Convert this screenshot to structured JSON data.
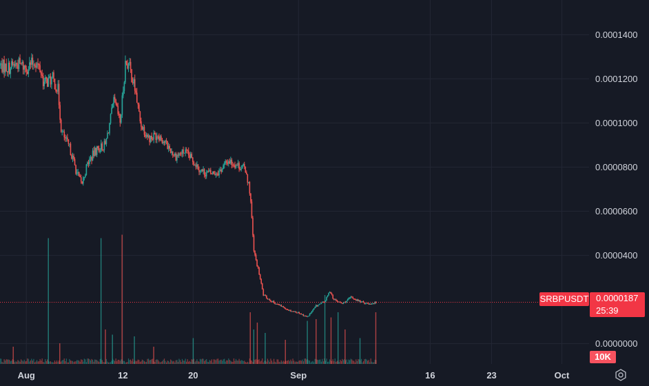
{
  "chart_data": {
    "type": "candlestick",
    "symbol": "SRBPUSDT",
    "last_price": "0.0000187",
    "countdown": "25:39",
    "volume_label": "10K",
    "y_ticks": [
      "0.0001400",
      "0.0001200",
      "0.0001000",
      "0.0000800",
      "0.0000600",
      "0.0000400",
      "0.0000000"
    ],
    "y_tick_values": [
      0.00014,
      0.00012,
      0.0001,
      8e-05,
      6e-05,
      4e-05,
      0
    ],
    "ylim": [
      -5e-07,
      0.0001495
    ],
    "x_ticks": [
      "Aug",
      "12",
      "20",
      "Sep",
      "16",
      "23",
      "Oct"
    ],
    "x_tick_days": [
      0,
      11,
      19,
      31,
      46,
      53,
      61
    ],
    "x_start": "Aug 1",
    "x_range_days": [
      -3.0,
      64.1
    ],
    "close_path": [
      {
        "d": -3.0,
        "v": 0.000126
      },
      {
        "d": -2.0,
        "v": 0.000125
      },
      {
        "d": -1.0,
        "v": 0.000127
      },
      {
        "d": 0.0,
        "v": 0.000125
      },
      {
        "d": 1.0,
        "v": 0.000128
      },
      {
        "d": 1.6,
        "v": 0.000124
      },
      {
        "d": 2.0,
        "v": 0.000118
      },
      {
        "d": 3.0,
        "v": 0.00012
      },
      {
        "d": 3.6,
        "v": 0.000115
      },
      {
        "d": 4.0,
        "v": 9.6e-05
      },
      {
        "d": 4.5,
        "v": 9.2e-05
      },
      {
        "d": 5.0,
        "v": 8.8e-05
      },
      {
        "d": 5.7,
        "v": 7.8e-05
      },
      {
        "d": 6.3,
        "v": 7.2e-05
      },
      {
        "d": 7.0,
        "v": 8.2e-05
      },
      {
        "d": 8.0,
        "v": 8.8e-05
      },
      {
        "d": 9.0,
        "v": 9e-05
      },
      {
        "d": 10.0,
        "v": 0.00011
      },
      {
        "d": 10.7,
        "v": 0.0001
      },
      {
        "d": 11.3,
        "v": 0.000128
      },
      {
        "d": 11.7,
        "v": 0.000126
      },
      {
        "d": 12.4,
        "v": 0.000115
      },
      {
        "d": 13.0,
        "v": 0.0001
      },
      {
        "d": 14.0,
        "v": 9.3e-05
      },
      {
        "d": 15.0,
        "v": 9.5e-05
      },
      {
        "d": 16.0,
        "v": 9e-05
      },
      {
        "d": 17.0,
        "v": 8.5e-05
      },
      {
        "d": 18.0,
        "v": 8.7e-05
      },
      {
        "d": 19.0,
        "v": 8.3e-05
      },
      {
        "d": 20.0,
        "v": 7.8e-05
      },
      {
        "d": 21.0,
        "v": 7.7e-05
      },
      {
        "d": 22.0,
        "v": 7.8e-05
      },
      {
        "d": 23.0,
        "v": 8.3e-05
      },
      {
        "d": 24.0,
        "v": 8.1e-05
      },
      {
        "d": 25.0,
        "v": 7.9e-05
      },
      {
        "d": 25.5,
        "v": 6.8e-05
      },
      {
        "d": 25.9,
        "v": 4.2e-05
      },
      {
        "d": 26.5,
        "v": 3.2e-05
      },
      {
        "d": 27.0,
        "v": 2.2e-05
      },
      {
        "d": 28.0,
        "v": 1.9e-05
      },
      {
        "d": 29.0,
        "v": 1.7e-05
      },
      {
        "d": 30.0,
        "v": 1.5e-05
      },
      {
        "d": 31.0,
        "v": 1.4e-05
      },
      {
        "d": 32.0,
        "v": 1.2e-05
      },
      {
        "d": 33.0,
        "v": 1.7e-05
      },
      {
        "d": 34.0,
        "v": 1.9e-05
      },
      {
        "d": 34.6,
        "v": 2.4e-05
      },
      {
        "d": 35.0,
        "v": 2e-05
      },
      {
        "d": 36.0,
        "v": 1.8e-05
      },
      {
        "d": 37.0,
        "v": 2.1e-05
      },
      {
        "d": 38.0,
        "v": 1.9e-05
      },
      {
        "d": 39.0,
        "v": 1.8e-05
      },
      {
        "d": 39.9,
        "v": 1.87e-05
      }
    ],
    "volume_spikes": [
      {
        "d": -1.5,
        "h": 0.1
      },
      {
        "d": 2.5,
        "h": 0.73
      },
      {
        "d": 3.8,
        "h": 0.12
      },
      {
        "d": 8.5,
        "h": 0.73
      },
      {
        "d": 9.0,
        "h": 0.2
      },
      {
        "d": 9.8,
        "h": 0.17
      },
      {
        "d": 10.9,
        "h": 0.75
      },
      {
        "d": 12.3,
        "h": 0.16
      },
      {
        "d": 14.5,
        "h": 0.1
      },
      {
        "d": 19.0,
        "h": 0.15
      },
      {
        "d": 25.5,
        "h": 0.3
      },
      {
        "d": 25.9,
        "h": 0.2
      },
      {
        "d": 26.3,
        "h": 0.24
      },
      {
        "d": 27.2,
        "h": 0.18
      },
      {
        "d": 29.5,
        "h": 0.14
      },
      {
        "d": 32.0,
        "h": 0.25
      },
      {
        "d": 33.0,
        "h": 0.26
      },
      {
        "d": 34.0,
        "h": 0.4
      },
      {
        "d": 34.7,
        "h": 0.27
      },
      {
        "d": 35.5,
        "h": 0.3
      },
      {
        "d": 36.3,
        "h": 0.2
      },
      {
        "d": 38.0,
        "h": 0.15
      },
      {
        "d": 39.8,
        "h": 0.3
      }
    ],
    "colors": {
      "background": "#161a25",
      "grid": "#232735",
      "up": "#26a69a",
      "down": "#ef5350",
      "price_line": "#f23645",
      "axis_text": "#d1d4dc"
    },
    "grid": true
  },
  "settings_icon": "gear-icon"
}
